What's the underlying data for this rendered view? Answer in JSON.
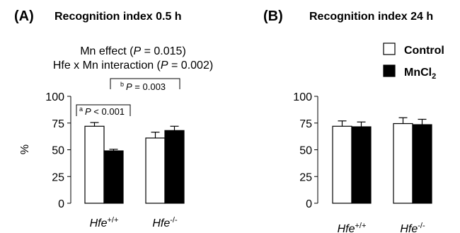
{
  "figure": {
    "panel_a_letter": "(A)",
    "panel_b_letter": "(B)"
  },
  "legend": [
    {
      "label": "Control",
      "color": "#ffffff"
    },
    {
      "label": "MnCl",
      "subscript": "2",
      "color": "#000000"
    }
  ],
  "chart_data": [
    {
      "type": "bar",
      "title": "Recognition index 0.5 h",
      "ylabel": "%",
      "ylim": [
        0,
        100
      ],
      "yticks": [
        0,
        25,
        50,
        75,
        100
      ],
      "categories": [
        {
          "base": "Hfe",
          "sup": "+/+"
        },
        {
          "base": "Hfe",
          "sup": "-/-"
        }
      ],
      "series": [
        {
          "name": "Control",
          "values": [
            72,
            61
          ],
          "errors": [
            3.5,
            5.5
          ],
          "color": "#ffffff"
        },
        {
          "name": "MnCl2",
          "values": [
            49,
            68
          ],
          "errors": [
            1.5,
            4
          ],
          "color": "#000000"
        }
      ],
      "annotations": {
        "mn_effect": {
          "pre": "Mn effect (",
          "p": "P",
          "post": " = 0.015)"
        },
        "interaction": {
          "pre": "Hfe x Mn interaction (",
          "p": "P",
          "post": " = 0.002)"
        },
        "bracket_a": {
          "mark": "a",
          "p": "P",
          "text": " < 0.001"
        },
        "bracket_b": {
          "mark": "b",
          "p": "P",
          "text": " = 0.003"
        }
      }
    },
    {
      "type": "bar",
      "title": "Recognition index 24 h",
      "ylabel": "",
      "ylim": [
        0,
        100
      ],
      "yticks": [
        0,
        25,
        50,
        75,
        100
      ],
      "categories": [
        {
          "base": "Hfe",
          "sup": "+/+"
        },
        {
          "base": "Hfe",
          "sup": "-/-"
        }
      ],
      "series": [
        {
          "name": "Control",
          "values": [
            72,
            74.5
          ],
          "errors": [
            5,
            5.5
          ],
          "color": "#ffffff"
        },
        {
          "name": "MnCl2",
          "values": [
            71.5,
            73.5
          ],
          "errors": [
            4.5,
            5
          ],
          "color": "#000000"
        }
      ]
    }
  ]
}
